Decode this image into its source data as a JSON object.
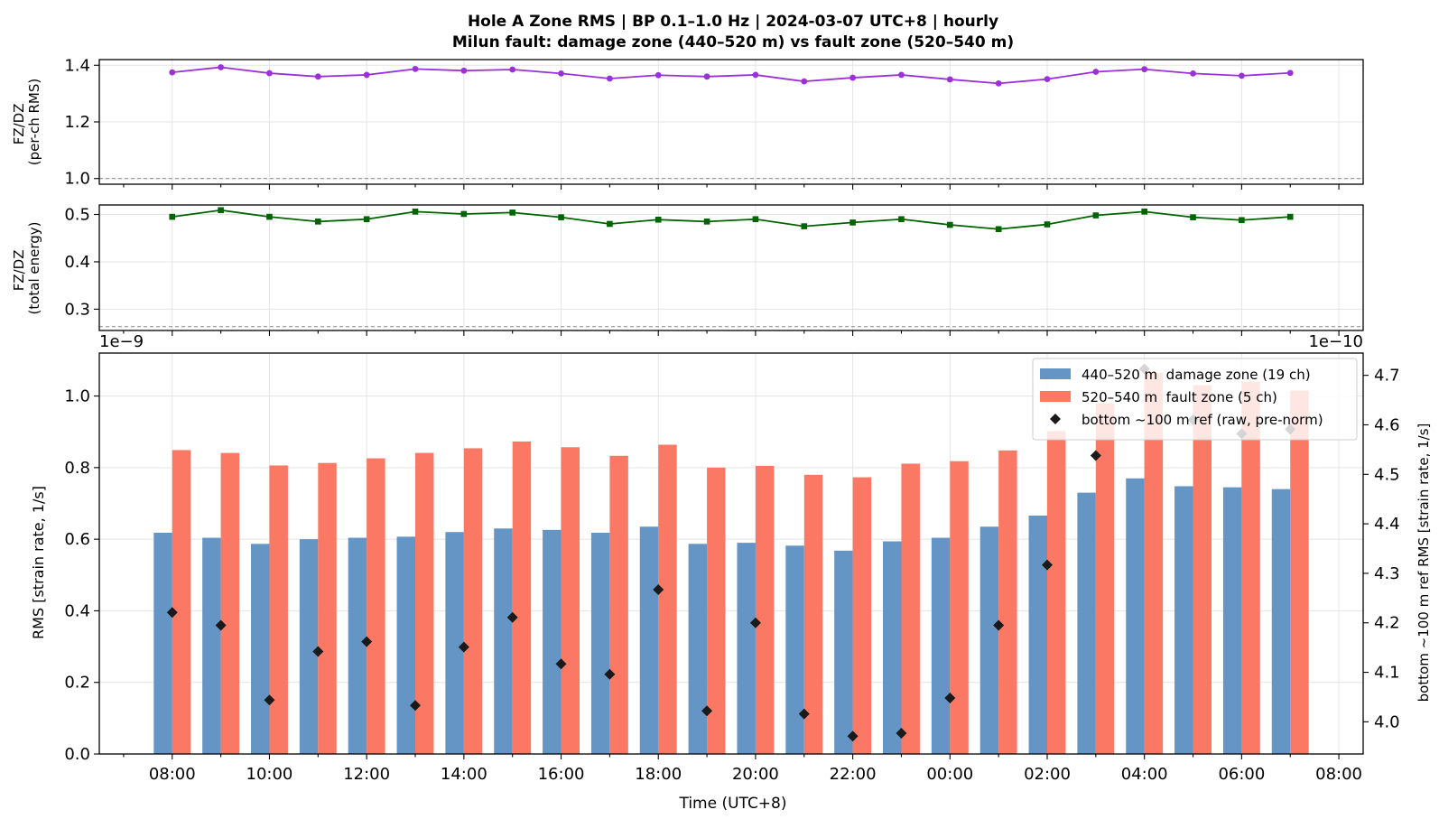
{
  "chart_data": [
    {
      "panel": "top",
      "type": "line",
      "title_line1": "Hole A Zone RMS  |  BP 0.1–1.0 Hz  |  2024-03-07 UTC+8  |  hourly",
      "title_line2": "Milun fault: damage zone (440–520 m) vs fault zone (520–540 m)",
      "ylabel_line1": "FZ/DZ",
      "ylabel_line2": "(per-ch RMS)",
      "ylim": [
        0.98,
        1.42
      ],
      "yticks": [
        "1.0",
        "1.2",
        "1.4"
      ],
      "reference_line": 1.0,
      "color": "#9b30d9",
      "marker": "circle",
      "x": [
        "08:00",
        "09:00",
        "10:00",
        "11:00",
        "12:00",
        "13:00",
        "14:00",
        "15:00",
        "16:00",
        "17:00",
        "18:00",
        "19:00",
        "20:00",
        "21:00",
        "22:00",
        "23:00",
        "00:00",
        "01:00",
        "02:00",
        "03:00",
        "04:00",
        "05:00",
        "06:00",
        "07:00"
      ],
      "values": [
        1.375,
        1.393,
        1.372,
        1.36,
        1.366,
        1.387,
        1.381,
        1.385,
        1.371,
        1.353,
        1.365,
        1.36,
        1.366,
        1.343,
        1.356,
        1.366,
        1.35,
        1.336,
        1.351,
        1.377,
        1.386,
        1.371,
        1.363,
        1.373
      ]
    },
    {
      "panel": "middle",
      "type": "line",
      "ylabel_line1": "FZ/DZ",
      "ylabel_line2": "(total energy)",
      "ylim": [
        0.255,
        0.52
      ],
      "yticks": [
        "0.3",
        "0.4",
        "0.5"
      ],
      "reference_line": 0.263,
      "color": "#006400",
      "marker": "square",
      "x": [
        "08:00",
        "09:00",
        "10:00",
        "11:00",
        "12:00",
        "13:00",
        "14:00",
        "15:00",
        "16:00",
        "17:00",
        "18:00",
        "19:00",
        "20:00",
        "21:00",
        "22:00",
        "23:00",
        "00:00",
        "01:00",
        "02:00",
        "03:00",
        "04:00",
        "05:00",
        "06:00",
        "07:00"
      ],
      "values": [
        0.495,
        0.509,
        0.495,
        0.485,
        0.49,
        0.506,
        0.501,
        0.504,
        0.494,
        0.48,
        0.489,
        0.485,
        0.49,
        0.475,
        0.483,
        0.49,
        0.478,
        0.469,
        0.479,
        0.498,
        0.506,
        0.494,
        0.488,
        0.495
      ]
    },
    {
      "panel": "bottom",
      "type": "bar",
      "ylabel": "RMS  [strain rate, 1/s]",
      "ylabel_right": "bottom ~100 m ref RMS  [strain rate, 1/s]",
      "xlabel": "Time (UTC+8)",
      "offset_left": "1e−9",
      "offset_right": "1e−10",
      "ylim": [
        0,
        1.12
      ],
      "yticks": [
        "0.0",
        "0.2",
        "0.4",
        "0.6",
        "0.8",
        "1.0"
      ],
      "ylim_right": [
        3.935,
        4.745
      ],
      "yticks_right": [
        "4.0",
        "4.1",
        "4.2",
        "4.3",
        "4.4",
        "4.5",
        "4.6",
        "4.7"
      ],
      "xticks": [
        "08:00",
        "10:00",
        "12:00",
        "14:00",
        "16:00",
        "18:00",
        "20:00",
        "22:00",
        "00:00",
        "02:00",
        "04:00",
        "06:00",
        "08:00"
      ],
      "categories": [
        "08:00",
        "09:00",
        "10:00",
        "11:00",
        "12:00",
        "13:00",
        "14:00",
        "15:00",
        "16:00",
        "17:00",
        "18:00",
        "19:00",
        "20:00",
        "21:00",
        "22:00",
        "23:00",
        "00:00",
        "01:00",
        "02:00",
        "03:00",
        "04:00",
        "05:00",
        "06:00",
        "07:00"
      ],
      "series": [
        {
          "name": "440–520 m  damage zone (19 ch)",
          "kind": "bar",
          "color": "#6495c4",
          "values": [
            0.618,
            0.604,
            0.587,
            0.6,
            0.604,
            0.607,
            0.62,
            0.63,
            0.626,
            0.618,
            0.635,
            0.587,
            0.59,
            0.582,
            0.568,
            0.594,
            0.604,
            0.635,
            0.666,
            0.73,
            0.77,
            0.748,
            0.745,
            0.74
          ]
        },
        {
          "name": "520–540 m  fault zone (5 ch)",
          "kind": "bar",
          "color": "#fa7864",
          "values": [
            0.849,
            0.841,
            0.806,
            0.813,
            0.826,
            0.841,
            0.854,
            0.873,
            0.857,
            0.833,
            0.864,
            0.8,
            0.805,
            0.78,
            0.773,
            0.811,
            0.818,
            0.848,
            0.902,
            0.98,
            1.065,
            1.03,
            1.04,
            1.015
          ]
        },
        {
          "name": "bottom ~100 m ref (raw, pre-norm)",
          "kind": "scatter",
          "axis": "right",
          "color": "#1a1a1a",
          "marker": "diamond",
          "values": [
            4.221,
            4.195,
            4.044,
            4.142,
            4.162,
            4.033,
            4.151,
            4.211,
            4.117,
            4.096,
            4.267,
            4.022,
            4.2,
            4.016,
            3.971,
            3.977,
            4.048,
            4.195,
            4.317,
            4.538,
            4.713,
            4.61,
            4.582,
            4.591
          ]
        }
      ],
      "legend_position": "top-right",
      "grid": true
    }
  ]
}
